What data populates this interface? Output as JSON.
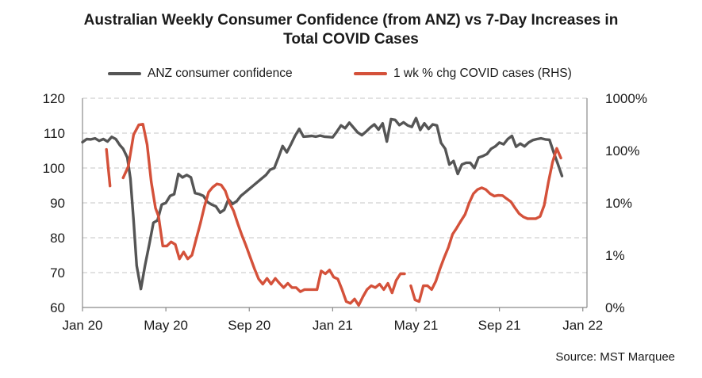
{
  "chart_data": {
    "type": "line",
    "title_line1": "Australian Weekly Consumer Confidence (from ANZ) vs 7-Day Increases in",
    "title_line2": "Total COVID Cases",
    "source": "Source: MST Marquee",
    "legend": [
      "ANZ consumer confidence",
      "1 wk % chg COVID cases (RHS)"
    ],
    "x_ticks": [
      "Jan 20",
      "May 20",
      "Sep 20",
      "Jan 21",
      "May 21",
      "Sep 21",
      "Jan 22"
    ],
    "x_unit": "months since Jan 2020",
    "x_tick_values": [
      0,
      4,
      8,
      12,
      16,
      20,
      24
    ],
    "x_range": [
      0,
      24.2
    ],
    "y_left": {
      "ticks": [
        "60",
        "70",
        "80",
        "90",
        "100",
        "110",
        "120"
      ],
      "range": [
        60,
        120
      ]
    },
    "y_right": {
      "ticks": [
        "0%",
        "1%",
        "10%",
        "100%",
        "1000%"
      ],
      "scale": "log",
      "range_percent": [
        0.1,
        1000
      ]
    },
    "colors": {
      "confidence": "#555555",
      "covid": "#d4513a",
      "grid": "#d0d0d0",
      "axis": "#8a8a8a"
    },
    "series": [
      {
        "name": "ANZ consumer confidence",
        "axis": "left",
        "points": [
          [
            0.0,
            107.4
          ],
          [
            0.2,
            108.3
          ],
          [
            0.4,
            108.2
          ],
          [
            0.6,
            108.5
          ],
          [
            0.8,
            107.8
          ],
          [
            1.0,
            108.3
          ],
          [
            1.2,
            107.6
          ],
          [
            1.4,
            108.9
          ],
          [
            1.6,
            108.3
          ],
          [
            1.8,
            106.5
          ],
          [
            1.95,
            105.5
          ],
          [
            2.15,
            103
          ],
          [
            2.3,
            97
          ],
          [
            2.45,
            85
          ],
          [
            2.6,
            72
          ],
          [
            2.8,
            65.3
          ],
          [
            3.0,
            72
          ],
          [
            3.2,
            78
          ],
          [
            3.4,
            84.3
          ],
          [
            3.6,
            85
          ],
          [
            3.8,
            89.5
          ],
          [
            4.0,
            90
          ],
          [
            4.2,
            92
          ],
          [
            4.4,
            92.5
          ],
          [
            4.6,
            98.3
          ],
          [
            4.8,
            97.3
          ],
          [
            5.0,
            98
          ],
          [
            5.2,
            97.3
          ],
          [
            5.4,
            92.8
          ],
          [
            5.6,
            92.5
          ],
          [
            5.8,
            92
          ],
          [
            6.0,
            90.2
          ],
          [
            6.2,
            89.5
          ],
          [
            6.4,
            89
          ],
          [
            6.6,
            87.2
          ],
          [
            6.8,
            88
          ],
          [
            7.0,
            91
          ],
          [
            7.2,
            89.7
          ],
          [
            7.4,
            90.5
          ],
          [
            7.6,
            92
          ],
          [
            7.8,
            93
          ],
          [
            8.0,
            94
          ],
          [
            8.2,
            95
          ],
          [
            8.4,
            96
          ],
          [
            8.6,
            97
          ],
          [
            8.8,
            98
          ],
          [
            9.0,
            99.5
          ],
          [
            9.2,
            100
          ],
          [
            9.4,
            103
          ],
          [
            9.6,
            106.3
          ],
          [
            9.8,
            104.5
          ],
          [
            10.0,
            106.8
          ],
          [
            10.2,
            109.3
          ],
          [
            10.4,
            111.2
          ],
          [
            10.6,
            109
          ],
          [
            10.8,
            109.1
          ],
          [
            11.0,
            109.2
          ],
          [
            11.2,
            109
          ],
          [
            11.4,
            109.3
          ],
          [
            11.6,
            109
          ],
          [
            11.8,
            108.9
          ],
          [
            12.0,
            108.8
          ],
          [
            12.2,
            110.4
          ],
          [
            12.4,
            112.2
          ],
          [
            12.6,
            111.4
          ],
          [
            12.8,
            113
          ],
          [
            13.0,
            111.6
          ],
          [
            13.2,
            110.2
          ],
          [
            13.4,
            109.4
          ],
          [
            13.6,
            110.4
          ],
          [
            13.8,
            111.6
          ],
          [
            14.0,
            112.5
          ],
          [
            14.2,
            111
          ],
          [
            14.4,
            112.8
          ],
          [
            14.6,
            107.6
          ],
          [
            14.8,
            114
          ],
          [
            15.0,
            113.8
          ],
          [
            15.2,
            112.3
          ],
          [
            15.4,
            113.1
          ],
          [
            15.6,
            112.2
          ],
          [
            15.8,
            111.8
          ],
          [
            16.0,
            114.3
          ],
          [
            16.2,
            110.9
          ],
          [
            16.4,
            112.8
          ],
          [
            16.6,
            111.2
          ],
          [
            16.8,
            112.5
          ],
          [
            17.0,
            112.2
          ],
          [
            17.2,
            107.2
          ],
          [
            17.4,
            105.5
          ],
          [
            17.6,
            101
          ],
          [
            17.8,
            102
          ],
          [
            18.0,
            98.3
          ],
          [
            18.2,
            101
          ],
          [
            18.4,
            101.5
          ],
          [
            18.6,
            101.5
          ],
          [
            18.8,
            100
          ],
          [
            19.0,
            103
          ],
          [
            19.2,
            103.4
          ],
          [
            19.4,
            104
          ],
          [
            19.6,
            105.5
          ],
          [
            19.8,
            106.2
          ],
          [
            20.0,
            107.3
          ],
          [
            20.2,
            106.8
          ],
          [
            20.4,
            108.3
          ],
          [
            20.6,
            109.2
          ],
          [
            20.8,
            106.1
          ],
          [
            21.0,
            107
          ],
          [
            21.2,
            106.2
          ],
          [
            21.4,
            107.3
          ],
          [
            21.6,
            108
          ],
          [
            21.8,
            108.3
          ],
          [
            22.0,
            108.5
          ],
          [
            22.2,
            108.2
          ],
          [
            22.4,
            108.1
          ],
          [
            22.6,
            104.5
          ],
          [
            22.8,
            101.2
          ],
          [
            23.0,
            97.7
          ]
        ]
      },
      {
        "name": "1 wk % chg COVID cases (RHS)",
        "axis": "right",
        "segments": [
          [
            [
              1.15,
              105
            ],
            [
              1.32,
              21
            ]
          ],
          [
            [
              1.95,
              30
            ],
            [
              2.2,
              50
            ],
            [
              2.45,
              200
            ],
            [
              2.7,
              310
            ],
            [
              2.9,
              320
            ],
            [
              3.1,
              130
            ],
            [
              3.3,
              25
            ],
            [
              3.5,
              8
            ],
            [
              3.65,
              5.5
            ],
            [
              3.85,
              1.5
            ],
            [
              4.05,
              1.5
            ],
            [
              4.25,
              1.8
            ],
            [
              4.45,
              1.6
            ],
            [
              4.65,
              0.85
            ],
            [
              4.85,
              1.15
            ],
            [
              5.05,
              0.85
            ],
            [
              5.25,
              1.0
            ],
            [
              5.45,
              2.0
            ],
            [
              5.65,
              4.0
            ],
            [
              5.85,
              8.5
            ],
            [
              6.05,
              16
            ],
            [
              6.25,
              20
            ],
            [
              6.45,
              23
            ],
            [
              6.65,
              22
            ],
            [
              6.85,
              17
            ],
            [
              7.05,
              10
            ],
            [
              7.25,
              7
            ],
            [
              7.45,
              4
            ],
            [
              7.65,
              2.4
            ],
            [
              7.85,
              1.5
            ],
            [
              8.05,
              0.9
            ],
            [
              8.25,
              0.55
            ],
            [
              8.45,
              0.35
            ],
            [
              8.65,
              0.28
            ],
            [
              8.85,
              0.36
            ],
            [
              9.05,
              0.28
            ],
            [
              9.25,
              0.36
            ],
            [
              9.45,
              0.29
            ],
            [
              9.65,
              0.24
            ],
            [
              9.85,
              0.29
            ],
            [
              10.05,
              0.24
            ],
            [
              10.25,
              0.24
            ],
            [
              10.45,
              0.2
            ],
            [
              10.65,
              0.22
            ],
            [
              10.85,
              0.22
            ],
            [
              11.05,
              0.22
            ],
            [
              11.25,
              0.22
            ],
            [
              11.45,
              0.5
            ],
            [
              11.65,
              0.44
            ],
            [
              11.85,
              0.52
            ],
            [
              12.05,
              0.38
            ],
            [
              12.25,
              0.35
            ],
            [
              12.45,
              0.22
            ],
            [
              12.65,
              0.13
            ],
            [
              12.85,
              0.12
            ],
            [
              13.05,
              0.145
            ],
            [
              13.25,
              0.11
            ],
            [
              13.45,
              0.16
            ],
            [
              13.65,
              0.22
            ],
            [
              13.85,
              0.26
            ],
            [
              14.05,
              0.24
            ],
            [
              14.25,
              0.28
            ],
            [
              14.45,
              0.22
            ],
            [
              14.65,
              0.29
            ],
            [
              14.85,
              0.19
            ],
            [
              15.05,
              0.33
            ],
            [
              15.25,
              0.44
            ],
            [
              15.45,
              0.44
            ]
          ],
          [
            [
              15.75,
              0.26
            ],
            [
              15.95,
              0.14
            ],
            [
              16.15,
              0.13
            ],
            [
              16.35,
              0.26
            ],
            [
              16.55,
              0.26
            ],
            [
              16.75,
              0.22
            ],
            [
              16.95,
              0.32
            ],
            [
              17.15,
              0.55
            ],
            [
              17.35,
              0.9
            ],
            [
              17.55,
              1.4
            ],
            [
              17.75,
              2.5
            ],
            [
              17.95,
              3.3
            ],
            [
              18.15,
              4.5
            ],
            [
              18.35,
              6
            ],
            [
              18.55,
              10
            ],
            [
              18.75,
              15
            ],
            [
              18.95,
              18
            ],
            [
              19.15,
              19.5
            ],
            [
              19.35,
              18
            ],
            [
              19.55,
              15
            ],
            [
              19.75,
              13.5
            ],
            [
              19.95,
              14
            ],
            [
              20.15,
              13.8
            ],
            [
              20.35,
              12
            ],
            [
              20.55,
              10.5
            ],
            [
              20.75,
              8
            ],
            [
              20.95,
              6.2
            ],
            [
              21.15,
              5.4
            ],
            [
              21.35,
              5.0
            ],
            [
              21.55,
              5.0
            ],
            [
              21.75,
              5.0
            ],
            [
              21.95,
              5.5
            ],
            [
              22.15,
              9
            ],
            [
              22.35,
              25
            ],
            [
              22.55,
              60
            ],
            [
              22.75,
              110
            ],
            [
              22.95,
              72
            ]
          ]
        ]
      }
    ]
  }
}
